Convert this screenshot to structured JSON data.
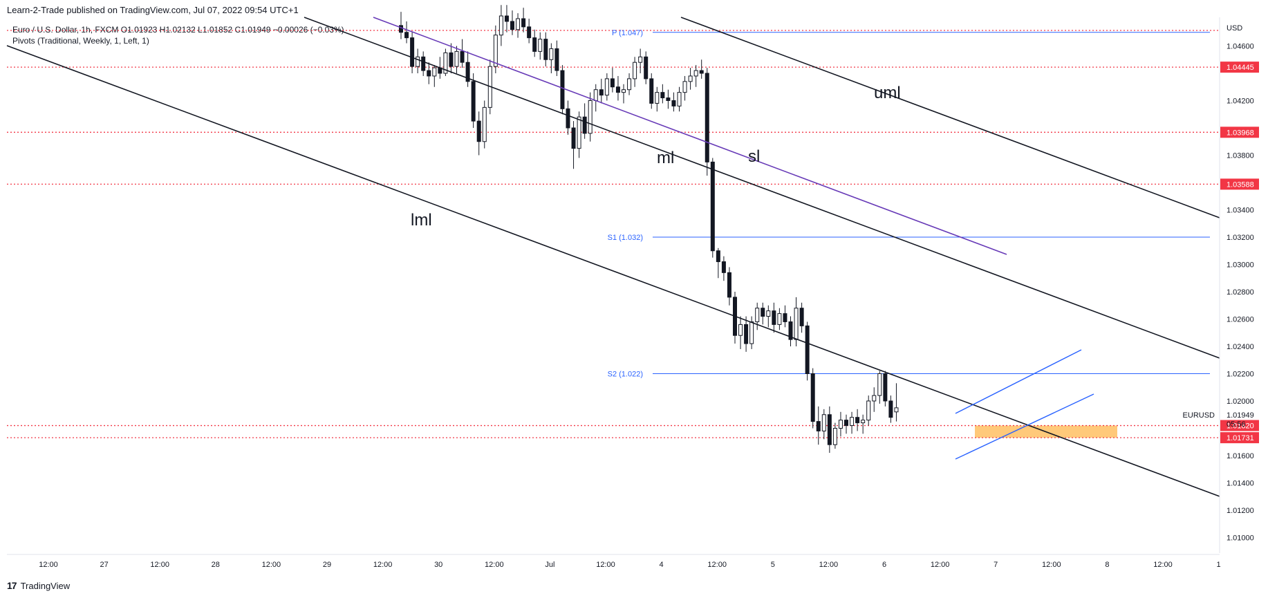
{
  "header": {
    "published_by": "Learn-2-Trade published on TradingView.com, Jul 07, 2022 09:54 UTC+1",
    "symbol_line": "Euro / U.S. Dollar, 1h, FXCM",
    "ohlc": "O1.01923  H1.02132  L1.01852  C1.01949  −0.00026 (−0.03%)",
    "indicator": "Pivots (Traditional, Weekly, 1, Left, 1)"
  },
  "footer": {
    "brand": "TradingView",
    "logo_glyph": "17"
  },
  "chart_data": {
    "type": "candlestick",
    "symbol": "EURUSD",
    "currency": "USD",
    "interval": "1h",
    "x_ticks": [
      "12:00",
      "27",
      "12:00",
      "28",
      "12:00",
      "29",
      "12:00",
      "30",
      "12:00",
      "Jul",
      "12:00",
      "4",
      "12:00",
      "5",
      "12:00",
      "6",
      "12:00",
      "7",
      "12:00",
      "8",
      "12:00",
      "1"
    ],
    "y_ticks": [
      "1.04600",
      "1.04200",
      "1.03800",
      "1.03400",
      "1.03200",
      "1.03000",
      "1.02800",
      "1.02600",
      "1.02400",
      "1.02200",
      "1.02000",
      "1.01600",
      "1.01400",
      "1.01200",
      "1.01000"
    ],
    "ylim": [
      1.0097,
      1.0487
    ],
    "pivot_levels": [
      {
        "label": "P (1.047)",
        "value": 1.047
      },
      {
        "label": "S1 (1.032)",
        "value": 1.032
      },
      {
        "label": "S2 (1.022)",
        "value": 1.022
      }
    ],
    "horizontal_levels": [
      {
        "label": "1.04445",
        "value": 1.04445
      },
      {
        "label": "1.03968",
        "value": 1.03968
      },
      {
        "label": "1.03588",
        "value": 1.03588
      },
      {
        "label": "1.01820",
        "value": 1.0182
      },
      {
        "label": "1.01731",
        "value": 1.01731
      }
    ],
    "last_price": {
      "symbol": "EURUSD",
      "value": "1.01949",
      "countdown": "05:56"
    },
    "lines": [
      {
        "label": "uml",
        "color": "#131722"
      },
      {
        "label": "ml",
        "color": "#131722"
      },
      {
        "label": "lml",
        "color": "#131722"
      },
      {
        "label": "sl",
        "color": "#673ab7"
      }
    ],
    "support_zone": {
      "low": 1.01731,
      "high": 1.0182,
      "color": "#ffb74d"
    },
    "candles": [
      [
        1.0475,
        1.0485,
        1.0465,
        1.047
      ],
      [
        1.047,
        1.0478,
        1.0462,
        1.0466
      ],
      [
        1.0466,
        1.047,
        1.044,
        1.0445
      ],
      [
        1.0445,
        1.0458,
        1.044,
        1.0452
      ],
      [
        1.0452,
        1.0456,
        1.0438,
        1.0442
      ],
      [
        1.0442,
        1.0448,
        1.0432,
        1.0438
      ],
      [
        1.0438,
        1.0446,
        1.043,
        1.0444
      ],
      [
        1.0444,
        1.0452,
        1.0436,
        1.044
      ],
      [
        1.044,
        1.0458,
        1.0438,
        1.0455
      ],
      [
        1.0455,
        1.0462,
        1.044,
        1.0445
      ],
      [
        1.0445,
        1.046,
        1.044,
        1.0456
      ],
      [
        1.0456,
        1.0465,
        1.0444,
        1.0448
      ],
      [
        1.0448,
        1.0456,
        1.043,
        1.0434
      ],
      [
        1.0434,
        1.044,
        1.04,
        1.0405
      ],
      [
        1.0405,
        1.0412,
        1.038,
        1.039
      ],
      [
        1.039,
        1.042,
        1.0385,
        1.0415
      ],
      [
        1.0415,
        1.045,
        1.041,
        1.0445
      ],
      [
        1.0445,
        1.0475,
        1.044,
        1.0468
      ],
      [
        1.0468,
        1.049,
        1.046,
        1.0482
      ],
      [
        1.0482,
        1.049,
        1.047,
        1.0478
      ],
      [
        1.0478,
        1.0486,
        1.0468,
        1.0472
      ],
      [
        1.0472,
        1.0484,
        1.0466,
        1.048
      ],
      [
        1.048,
        1.0488,
        1.047,
        1.0474
      ],
      [
        1.0474,
        1.048,
        1.0462,
        1.0466
      ],
      [
        1.0466,
        1.0472,
        1.0452,
        1.0456
      ],
      [
        1.0456,
        1.047,
        1.045,
        1.0465
      ],
      [
        1.0465,
        1.047,
        1.0445,
        1.045
      ],
      [
        1.045,
        1.0462,
        1.044,
        1.0458
      ],
      [
        1.0458,
        1.0464,
        1.0438,
        1.0442
      ],
      [
        1.0442,
        1.0446,
        1.041,
        1.0414
      ],
      [
        1.0414,
        1.042,
        1.0395,
        1.04
      ],
      [
        1.04,
        1.0405,
        1.037,
        1.0385
      ],
      [
        1.0385,
        1.0412,
        1.0378,
        1.0408
      ],
      [
        1.0408,
        1.0418,
        1.0392,
        1.0396
      ],
      [
        1.0396,
        1.0426,
        1.039,
        1.042
      ],
      [
        1.042,
        1.0432,
        1.0412,
        1.0428
      ],
      [
        1.0428,
        1.0436,
        1.0418,
        1.0424
      ],
      [
        1.0424,
        1.044,
        1.042,
        1.0436
      ],
      [
        1.0436,
        1.0444,
        1.0426,
        1.043
      ],
      [
        1.043,
        1.0438,
        1.042,
        1.0426
      ],
      [
        1.0426,
        1.0432,
        1.0418,
        1.0428
      ],
      [
        1.0428,
        1.044,
        1.0424,
        1.0436
      ],
      [
        1.0436,
        1.0452,
        1.043,
        1.0448
      ],
      [
        1.0448,
        1.0458,
        1.044,
        1.0452
      ],
      [
        1.0452,
        1.0456,
        1.0432,
        1.0436
      ],
      [
        1.0436,
        1.044,
        1.0414,
        1.0418
      ],
      [
        1.0418,
        1.043,
        1.0412,
        1.0426
      ],
      [
        1.0426,
        1.0432,
        1.0418,
        1.0422
      ],
      [
        1.0422,
        1.0428,
        1.0414,
        1.042
      ],
      [
        1.042,
        1.0426,
        1.0412,
        1.0416
      ],
      [
        1.0416,
        1.043,
        1.0412,
        1.0426
      ],
      [
        1.0426,
        1.0438,
        1.042,
        1.0434
      ],
      [
        1.0434,
        1.0444,
        1.0428,
        1.0438
      ],
      [
        1.0438,
        1.0446,
        1.043,
        1.0442
      ],
      [
        1.0442,
        1.045,
        1.0436,
        1.044
      ],
      [
        1.044,
        1.0444,
        1.0365,
        1.0375
      ],
      [
        1.0375,
        1.0378,
        1.0305,
        1.031
      ],
      [
        1.031,
        1.0312,
        1.029,
        1.0302
      ],
      [
        1.0302,
        1.0306,
        1.0288,
        1.0294
      ],
      [
        1.0294,
        1.0298,
        1.027,
        1.0276
      ],
      [
        1.0276,
        1.028,
        1.0242,
        1.0248
      ],
      [
        1.0248,
        1.0262,
        1.0238,
        1.0256
      ],
      [
        1.0256,
        1.0262,
        1.0236,
        1.0242
      ],
      [
        1.0242,
        1.0262,
        1.0238,
        1.0258
      ],
      [
        1.0258,
        1.0272,
        1.0252,
        1.0268
      ],
      [
        1.0268,
        1.0272,
        1.0256,
        1.0262
      ],
      [
        1.0262,
        1.027,
        1.0254,
        1.0266
      ],
      [
        1.0266,
        1.0272,
        1.025,
        1.0256
      ],
      [
        1.0256,
        1.0268,
        1.0252,
        1.0264
      ],
      [
        1.0264,
        1.027,
        1.0254,
        1.0258
      ],
      [
        1.0258,
        1.0262,
        1.024,
        1.0245
      ],
      [
        1.0245,
        1.0276,
        1.024,
        1.0268
      ],
      [
        1.0268,
        1.0272,
        1.025,
        1.0255
      ],
      [
        1.0255,
        1.0258,
        1.0215,
        1.022
      ],
      [
        1.022,
        1.0224,
        1.018,
        1.0185
      ],
      [
        1.0185,
        1.0196,
        1.0168,
        1.0178
      ],
      [
        1.0178,
        1.0194,
        1.0172,
        1.019
      ],
      [
        1.019,
        1.0196,
        1.0162,
        1.0168
      ],
      [
        1.0168,
        1.0184,
        1.0165,
        1.018
      ],
      [
        1.018,
        1.0192,
        1.0174,
        1.0186
      ],
      [
        1.0186,
        1.019,
        1.0176,
        1.0182
      ],
      [
        1.0182,
        1.0192,
        1.0176,
        1.0188
      ],
      [
        1.0188,
        1.0194,
        1.0178,
        1.0184
      ],
      [
        1.0184,
        1.019,
        1.0176,
        1.0186
      ],
      [
        1.0186,
        1.0204,
        1.0182,
        1.02
      ],
      [
        1.02,
        1.021,
        1.0192,
        1.0204
      ],
      [
        1.0204,
        1.0222,
        1.0198,
        1.022
      ],
      [
        1.022,
        1.0222,
        1.0196,
        1.02
      ],
      [
        1.02,
        1.0204,
        1.0184,
        1.0188
      ],
      [
        1.0192,
        1.0213,
        1.0185,
        1.0195
      ]
    ]
  }
}
